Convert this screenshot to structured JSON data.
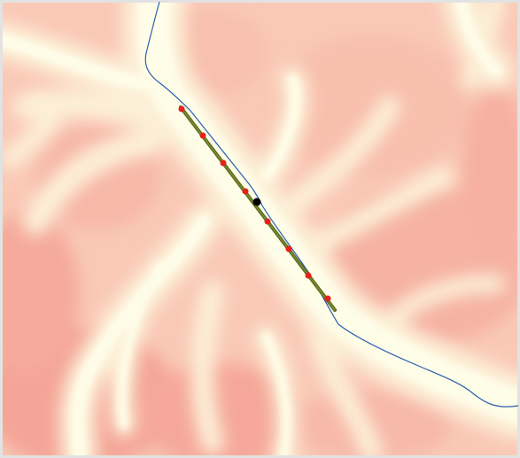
{
  "map": {
    "colors": {
      "terrain_high": "#f29a8f",
      "terrain_mid": "#f9c9b6",
      "terrain_low": "#fde6d2",
      "valley_floor": "#fefde6",
      "stream": "#2a5fb0",
      "transect": "#5a6b1e",
      "sample_point": "#e8201a",
      "center_marker": "#000000",
      "border": "#dddddd"
    },
    "layers": [
      {
        "name": "elevation-raster"
      },
      {
        "name": "stream-line"
      },
      {
        "name": "transect-line"
      },
      {
        "name": "sample-points",
        "count": 8
      },
      {
        "name": "center-marker"
      }
    ]
  }
}
